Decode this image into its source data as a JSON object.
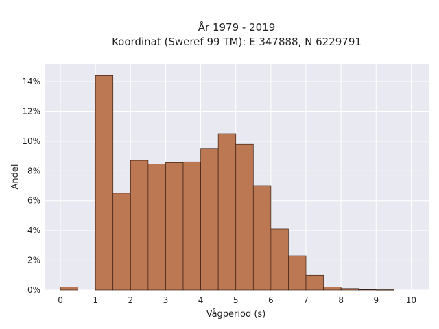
{
  "title_line1": "År 1979 - 2019",
  "title_line2": "Koordinat (Sweref 99 TM): E 347888, N 6229791",
  "chart_data": {
    "type": "bar",
    "xlabel": "Vågperiod (s)",
    "ylabel": "Andel",
    "xlim": [
      -0.45,
      10.5
    ],
    "ylim": [
      0,
      15.2
    ],
    "x_ticks": [
      0,
      1,
      2,
      3,
      4,
      5,
      6,
      7,
      8,
      9,
      10
    ],
    "y_ticks": [
      0,
      2,
      4,
      6,
      8,
      10,
      12,
      14
    ],
    "y_tick_labels": [
      "0%",
      "2%",
      "4%",
      "6%",
      "8%",
      "10%",
      "12%",
      "14%"
    ],
    "bin_width": 0.5,
    "bins": [
      {
        "start": 0.0,
        "value": 0.2
      },
      {
        "start": 0.5,
        "value": 0.0
      },
      {
        "start": 1.0,
        "value": 14.4
      },
      {
        "start": 1.5,
        "value": 6.5
      },
      {
        "start": 2.0,
        "value": 8.7
      },
      {
        "start": 2.5,
        "value": 8.45
      },
      {
        "start": 3.0,
        "value": 8.55
      },
      {
        "start": 3.5,
        "value": 8.6
      },
      {
        "start": 4.0,
        "value": 9.5
      },
      {
        "start": 4.5,
        "value": 10.5
      },
      {
        "start": 5.0,
        "value": 9.8
      },
      {
        "start": 5.5,
        "value": 7.0
      },
      {
        "start": 6.0,
        "value": 4.1
      },
      {
        "start": 6.5,
        "value": 2.3
      },
      {
        "start": 7.0,
        "value": 1.0
      },
      {
        "start": 7.5,
        "value": 0.2
      },
      {
        "start": 8.0,
        "value": 0.1
      },
      {
        "start": 8.5,
        "value": 0.03
      },
      {
        "start": 9.0,
        "value": 0.02
      }
    ],
    "bar_color": "#bc7853",
    "bar_edge_color": "#3a1f12",
    "plot_background": "#e9e9f1",
    "grid": true
  }
}
